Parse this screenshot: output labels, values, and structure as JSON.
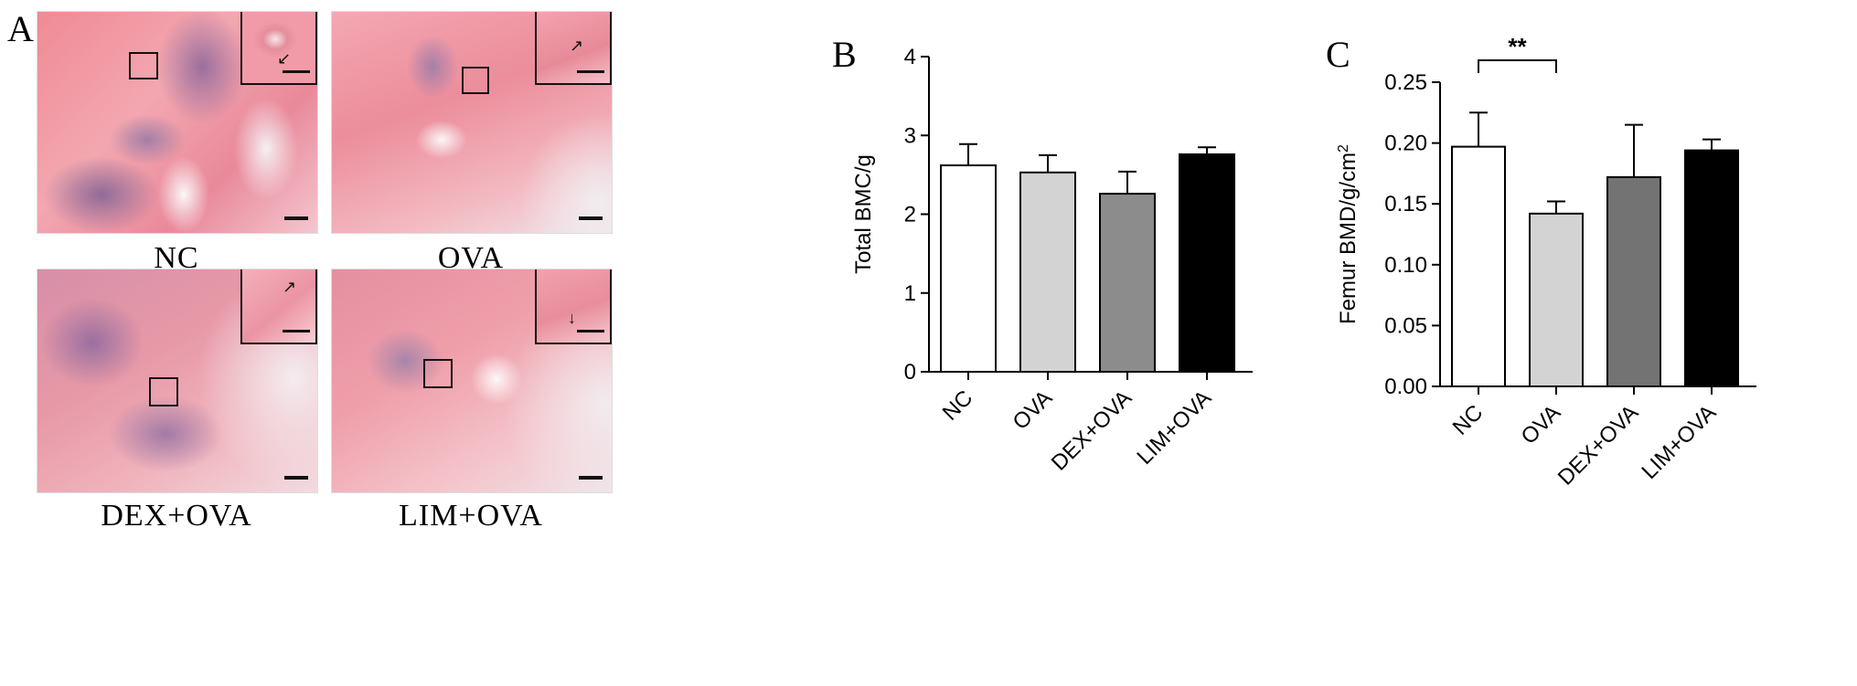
{
  "panels": {
    "a": "A",
    "b": "B",
    "c": "C"
  },
  "micrographs": [
    {
      "label": "NC"
    },
    {
      "label": "OVA"
    },
    {
      "label": "DEX+OVA"
    },
    {
      "label": "LIM+OVA"
    }
  ],
  "chart_data": [
    {
      "type": "bar",
      "categories": [
        "NC",
        "OVA",
        "DEX+OVA",
        "LIM+OVA"
      ],
      "values": [
        2.62,
        2.53,
        2.26,
        2.76
      ],
      "errors": [
        0.27,
        0.22,
        0.28,
        0.09
      ],
      "ylabel": "Total BMC/g",
      "ylim": [
        0,
        4
      ],
      "yticks": [
        "0",
        "1",
        "2",
        "3",
        "4"
      ],
      "bar_colors": [
        "#ffffff",
        "#d3d3d3",
        "#8c8c8c",
        "#000000"
      ],
      "significance": []
    },
    {
      "type": "bar",
      "categories": [
        "NC",
        "OVA",
        "DEX+OVA",
        "LIM+OVA"
      ],
      "values": [
        0.197,
        0.142,
        0.172,
        0.194
      ],
      "errors": [
        0.028,
        0.01,
        0.043,
        0.009
      ],
      "ylabel": "Femur BMD/g/cm",
      "ylabel_sup": "2",
      "ylim": [
        0,
        0.25
      ],
      "yticks": [
        "0.00",
        "0.05",
        "0.10",
        "0.15",
        "0.20",
        "0.25"
      ],
      "bar_colors": [
        "#ffffff",
        "#d3d3d3",
        "#737373",
        "#000000"
      ],
      "significance": [
        {
          "from": 0,
          "to": 1,
          "label": "**"
        }
      ]
    }
  ]
}
